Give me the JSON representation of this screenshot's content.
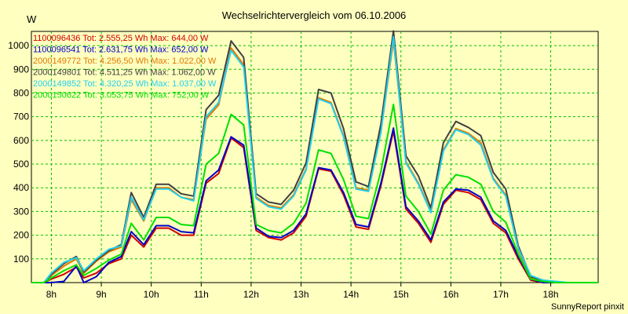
{
  "chart_data": {
    "type": "line",
    "title": "Wechselrichtervergleich vom 06.10.2006",
    "ylabel": "W",
    "xlabel": "",
    "footer": "SunnyReport pinxit",
    "grid": true,
    "legend_position": "top-left",
    "xlim": [
      7.6,
      18.95
    ],
    "ylim": [
      0,
      1060
    ],
    "x_ticks": [
      8,
      9,
      10,
      11,
      12,
      13,
      14,
      15,
      16,
      17,
      18
    ],
    "x_tick_labels": [
      "8h",
      "9h",
      "10h",
      "11h",
      "12h",
      "13h",
      "14h",
      "15h",
      "16h",
      "17h",
      "18h"
    ],
    "y_ticks": [
      100,
      200,
      300,
      400,
      500,
      600,
      700,
      800,
      900,
      1000
    ],
    "x": [
      7.6,
      7.85,
      8.0,
      8.25,
      8.5,
      8.65,
      8.9,
      9.15,
      9.4,
      9.6,
      9.85,
      10.1,
      10.35,
      10.6,
      10.85,
      11.1,
      11.35,
      11.6,
      11.85,
      12.1,
      12.35,
      12.6,
      12.85,
      13.1,
      13.35,
      13.6,
      13.85,
      14.1,
      14.35,
      14.6,
      14.85,
      15.1,
      15.35,
      15.6,
      15.85,
      16.1,
      16.35,
      16.6,
      16.85,
      17.1,
      17.35,
      17.6,
      17.85,
      18.1,
      18.35,
      18.6,
      18.95
    ],
    "series": [
      {
        "name": "1100096436",
        "legend": "1100096436 Tot: 2.555,25 Wh Max: 644,00 W",
        "color": "#d00000",
        "values": [
          0,
          0,
          15,
          35,
          65,
          20,
          40,
          80,
          100,
          200,
          150,
          230,
          230,
          200,
          200,
          420,
          460,
          610,
          570,
          220,
          190,
          180,
          210,
          280,
          480,
          470,
          370,
          235,
          225,
          410,
          640,
          310,
          250,
          170,
          330,
          390,
          380,
          350,
          250,
          210,
          100,
          10,
          0,
          0,
          0,
          0,
          0
        ]
      },
      {
        "name": "1100096541",
        "legend": "1100096541 Tot: 2.631,75 Wh Max: 652,00 W",
        "color": "#0000c8",
        "values": [
          0,
          0,
          0,
          5,
          70,
          0,
          25,
          85,
          110,
          215,
          160,
          240,
          240,
          215,
          210,
          430,
          475,
          615,
          580,
          230,
          195,
          190,
          220,
          290,
          485,
          475,
          380,
          245,
          235,
          420,
          652,
          320,
          260,
          180,
          340,
          395,
          390,
          360,
          260,
          220,
          110,
          15,
          0,
          0,
          0,
          0,
          0
        ]
      },
      {
        "name": "2000149772",
        "legend": "2000149772 Tot: 4.256,50 Wh Max: 1.022,00 W",
        "color": "#e07800",
        "values": [
          0,
          0,
          30,
          70,
          100,
          40,
          90,
          130,
          150,
          350,
          260,
          400,
          400,
          360,
          350,
          690,
          750,
          990,
          920,
          360,
          325,
          315,
          370,
          480,
          780,
          760,
          620,
          400,
          390,
          640,
          1022,
          510,
          420,
          300,
          560,
          650,
          630,
          590,
          440,
          370,
          140,
          20,
          5,
          0,
          0,
          0,
          0
        ]
      },
      {
        "name": "2000149801",
        "legend": "2000149801 Tot: 4.511,25 Wh Max: 1.062,00 W",
        "color": "#404040",
        "values": [
          0,
          0,
          35,
          80,
          110,
          45,
          95,
          135,
          160,
          380,
          275,
          415,
          415,
          375,
          365,
          730,
          790,
          1020,
          950,
          375,
          340,
          330,
          390,
          505,
          815,
          800,
          650,
          425,
          405,
          670,
          1062,
          535,
          450,
          315,
          590,
          680,
          655,
          620,
          465,
          395,
          155,
          25,
          10,
          0,
          0,
          0,
          0
        ]
      },
      {
        "name": "2000149852",
        "legend": "2000149852 Tot: 4.320,25 Wh Max: 1.037,00 W",
        "color": "#20d0f0",
        "values": [
          0,
          0,
          40,
          85,
          105,
          50,
          100,
          140,
          155,
          360,
          265,
          395,
          395,
          360,
          345,
          700,
          760,
          980,
          910,
          355,
          320,
          310,
          365,
          475,
          775,
          755,
          615,
          395,
          385,
          635,
          1037,
          505,
          415,
          295,
          555,
          645,
          625,
          580,
          435,
          365,
          145,
          30,
          10,
          5,
          0,
          0,
          0
        ]
      },
      {
        "name": "2000150622",
        "legend": "2000150622 Tot: 3.053,75 Wh Max: 752,00 W",
        "color": "#00e000",
        "values": [
          0,
          0,
          20,
          50,
          75,
          30,
          60,
          95,
          120,
          250,
          180,
          275,
          275,
          245,
          240,
          500,
          545,
          710,
          665,
          245,
          220,
          210,
          250,
          335,
          560,
          545,
          435,
          280,
          270,
          470,
          752,
          365,
          300,
          205,
          390,
          455,
          445,
          415,
          300,
          255,
          120,
          15,
          5,
          0,
          0,
          0,
          0
        ]
      }
    ]
  }
}
